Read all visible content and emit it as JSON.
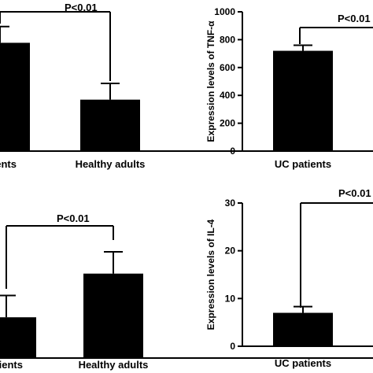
{
  "chart_data": [
    {
      "type": "bar",
      "title": "",
      "xlabel": "",
      "ylabel": "",
      "categories": [
        "UC patients",
        "Healthy adults"
      ],
      "category_display": [
        "atients",
        "Healthy adults"
      ],
      "values": [
        80,
        38
      ],
      "errors": [
        12,
        12
      ],
      "ylim": [
        0,
        100
      ],
      "yticks": [],
      "annotation": "P<0.01",
      "grid": false,
      "legend": "none"
    },
    {
      "type": "bar",
      "title": "",
      "xlabel": "",
      "ylabel": "Expression levels of TNF-α",
      "categories": [
        "UC patients",
        "Healthy adults"
      ],
      "category_display": [
        "UC patients",
        ""
      ],
      "values": [
        720,
        null
      ],
      "errors": [
        40,
        null
      ],
      "ylim": [
        0,
        1000
      ],
      "yticks": [
        0,
        200,
        400,
        600,
        800,
        1000
      ],
      "annotation": "P<0.01",
      "grid": false,
      "legend": "none"
    },
    {
      "type": "bar",
      "title": "",
      "xlabel": "",
      "ylabel": "",
      "categories": [
        "UC patients",
        "Healthy adults"
      ],
      "category_display": [
        "atients",
        "Healthy adults"
      ],
      "values": [
        28,
        58
      ],
      "errors": [
        15,
        15
      ],
      "ylim": [
        0,
        100
      ],
      "yticks": [],
      "annotation": "P<0.01",
      "grid": false,
      "legend": "none"
    },
    {
      "type": "bar",
      "title": "",
      "xlabel": "",
      "ylabel": "Expression levels of IL-4",
      "categories": [
        "UC patients",
        "Healthy adults"
      ],
      "category_display": [
        "UC patients",
        ""
      ],
      "values": [
        7,
        null
      ],
      "errors": [
        1.3,
        null
      ],
      "ylim": [
        0,
        30
      ],
      "yticks": [
        0,
        10,
        20,
        30
      ],
      "annotation": "P<0.01",
      "grid": false,
      "legend": "none"
    }
  ],
  "colors": {
    "bar": "#000000",
    "axis": "#000000"
  }
}
